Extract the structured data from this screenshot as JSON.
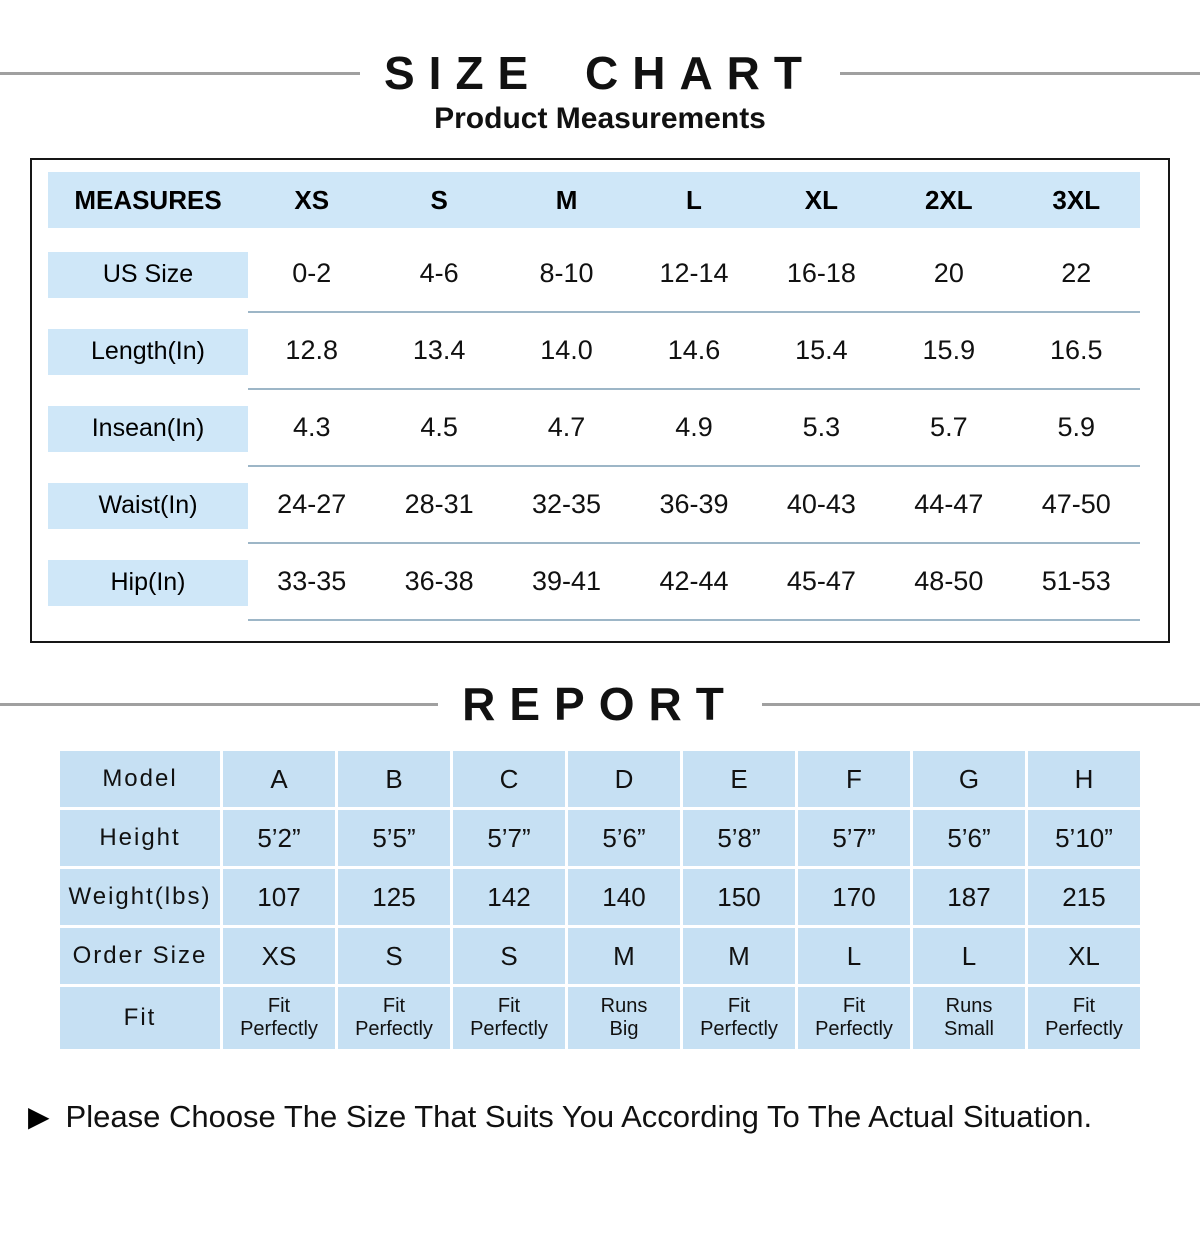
{
  "page": {
    "title": "SIZE CHART",
    "subtitle": "Product Measurements",
    "report_title": "REPORT",
    "footnote": "Please Choose The Size That Suits You According To The Actual Situation."
  },
  "icons": {
    "arrow_right": "▶"
  },
  "colors": {
    "size_table_fill": "#cfe7f8",
    "report_table_fill": "#c6e0f3",
    "row_line": "#9db6c7",
    "title_line": "#a0a0a0"
  },
  "size_chart": {
    "header": [
      "MEASURES",
      "XS",
      "S",
      "M",
      "L",
      "XL",
      "2XL",
      "3XL"
    ],
    "rows": [
      {
        "label": "US Size",
        "values": [
          "0-2",
          "4-6",
          "8-10",
          "12-14",
          "16-18",
          "20",
          "22"
        ]
      },
      {
        "label": "Length(In)",
        "values": [
          "12.8",
          "13.4",
          "14.0",
          "14.6",
          "15.4",
          "15.9",
          "16.5"
        ]
      },
      {
        "label": "Insean(In)",
        "values": [
          "4.3",
          "4.5",
          "4.7",
          "4.9",
          "5.3",
          "5.7",
          "5.9"
        ]
      },
      {
        "label": "Waist(In)",
        "values": [
          "24-27",
          "28-31",
          "32-35",
          "36-39",
          "40-43",
          "44-47",
          "47-50"
        ]
      },
      {
        "label": "Hip(In)",
        "values": [
          "33-35",
          "36-38",
          "39-41",
          "42-44",
          "45-47",
          "48-50",
          "51-53"
        ]
      }
    ]
  },
  "report": {
    "rows": [
      {
        "label": "Model",
        "values": [
          "A",
          "B",
          "C",
          "D",
          "E",
          "F",
          "G",
          "H"
        ]
      },
      {
        "label": "Height",
        "values": [
          "5’2”",
          "5’5”",
          "5’7”",
          "5’6”",
          "5’8”",
          "5’7”",
          "5’6”",
          "5’10”"
        ]
      },
      {
        "label": "Weight(lbs)",
        "values": [
          "107",
          "125",
          "142",
          "140",
          "150",
          "170",
          "187",
          "215"
        ]
      },
      {
        "label": "Order Size",
        "values": [
          "XS",
          "S",
          "S",
          "M",
          "M",
          "L",
          "L",
          "XL"
        ]
      }
    ],
    "fit_row": {
      "label": "Fit",
      "values": [
        {
          "l1": "Fit",
          "l2": "Perfectly"
        },
        {
          "l1": "Fit",
          "l2": "Perfectly"
        },
        {
          "l1": "Fit",
          "l2": "Perfectly"
        },
        {
          "l1": "Runs",
          "l2": "Big"
        },
        {
          "l1": "Fit",
          "l2": "Perfectly"
        },
        {
          "l1": "Fit",
          "l2": "Perfectly"
        },
        {
          "l1": "Runs",
          "l2": "Small"
        },
        {
          "l1": "Fit",
          "l2": "Perfectly"
        }
      ]
    }
  },
  "chart_data": [
    {
      "type": "table",
      "title": "SIZE CHART — Product Measurements",
      "columns": [
        "MEASURES",
        "XS",
        "S",
        "M",
        "L",
        "XL",
        "2XL",
        "3XL"
      ],
      "rows": [
        [
          "US Size",
          "0-2",
          "4-6",
          "8-10",
          "12-14",
          "16-18",
          "20",
          "22"
        ],
        [
          "Length(In)",
          "12.8",
          "13.4",
          "14.0",
          "14.6",
          "15.4",
          "15.9",
          "16.5"
        ],
        [
          "Insean(In)",
          "4.3",
          "4.5",
          "4.7",
          "4.9",
          "5.3",
          "5.7",
          "5.9"
        ],
        [
          "Waist(In)",
          "24-27",
          "28-31",
          "32-35",
          "36-39",
          "40-43",
          "44-47",
          "47-50"
        ],
        [
          "Hip(In)",
          "33-35",
          "36-38",
          "39-41",
          "42-44",
          "45-47",
          "48-50",
          "51-53"
        ]
      ]
    },
    {
      "type": "table",
      "title": "REPORT",
      "columns": [
        "Model",
        "A",
        "B",
        "C",
        "D",
        "E",
        "F",
        "G",
        "H"
      ],
      "rows": [
        [
          "Height",
          "5’2”",
          "5’5”",
          "5’7”",
          "5’6”",
          "5’8”",
          "5’7”",
          "5’6”",
          "5’10”"
        ],
        [
          "Weight(lbs)",
          "107",
          "125",
          "142",
          "140",
          "150",
          "170",
          "187",
          "215"
        ],
        [
          "Order Size",
          "XS",
          "S",
          "S",
          "M",
          "M",
          "L",
          "L",
          "XL"
        ],
        [
          "Fit",
          "Fit Perfectly",
          "Fit Perfectly",
          "Fit Perfectly",
          "Runs Big",
          "Fit Perfectly",
          "Fit Perfectly",
          "Runs Small",
          "Fit Perfectly"
        ]
      ]
    }
  ]
}
